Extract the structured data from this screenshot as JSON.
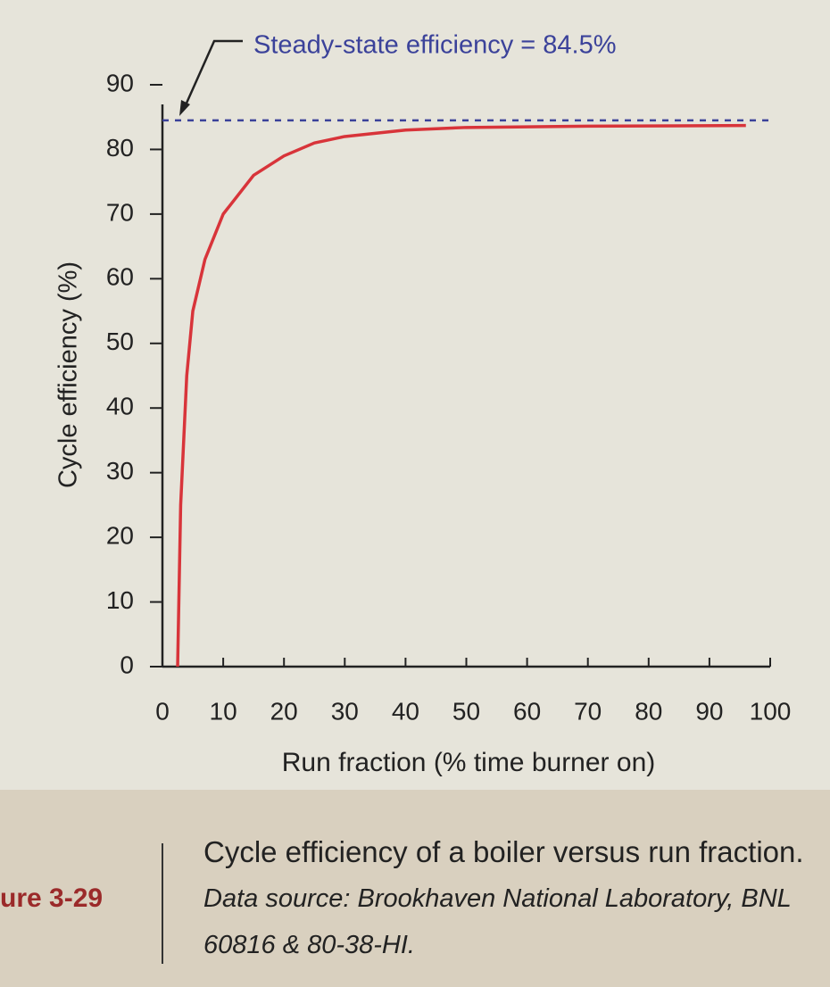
{
  "chart_data": {
    "type": "line",
    "x_label": "Run fraction (% time burner on)",
    "y_label": "Cycle efficiency (%)",
    "annotation": "Steady-state efficiency = 84.5%",
    "reference_line": {
      "value": 84.5,
      "color": "#3b429a",
      "dashed": true
    },
    "x": [
      2.5,
      3,
      4,
      5,
      7,
      10,
      15,
      20,
      25,
      30,
      40,
      50,
      70,
      96
    ],
    "series": [
      {
        "color": "#d8343a",
        "values": [
          0,
          25,
          45,
          55,
          63,
          70,
          76,
          79,
          81,
          82,
          83,
          83.4,
          83.6,
          83.7
        ]
      }
    ],
    "xlim": [
      0,
      100
    ],
    "xticks": [
      0,
      10,
      20,
      30,
      40,
      50,
      60,
      70,
      80,
      90,
      100
    ],
    "ylim": [
      0,
      90
    ],
    "yticks": [
      0,
      10,
      20,
      30,
      40,
      50,
      60,
      70,
      80,
      90
    ],
    "grid": false
  },
  "caption": {
    "figure_label": "ure 3-29",
    "text": "Cycle efficiency of a boiler versus run fraction.",
    "source": "Data source: Brookhaven National Laboratory, BNL 60816 & 80-38-HI."
  }
}
